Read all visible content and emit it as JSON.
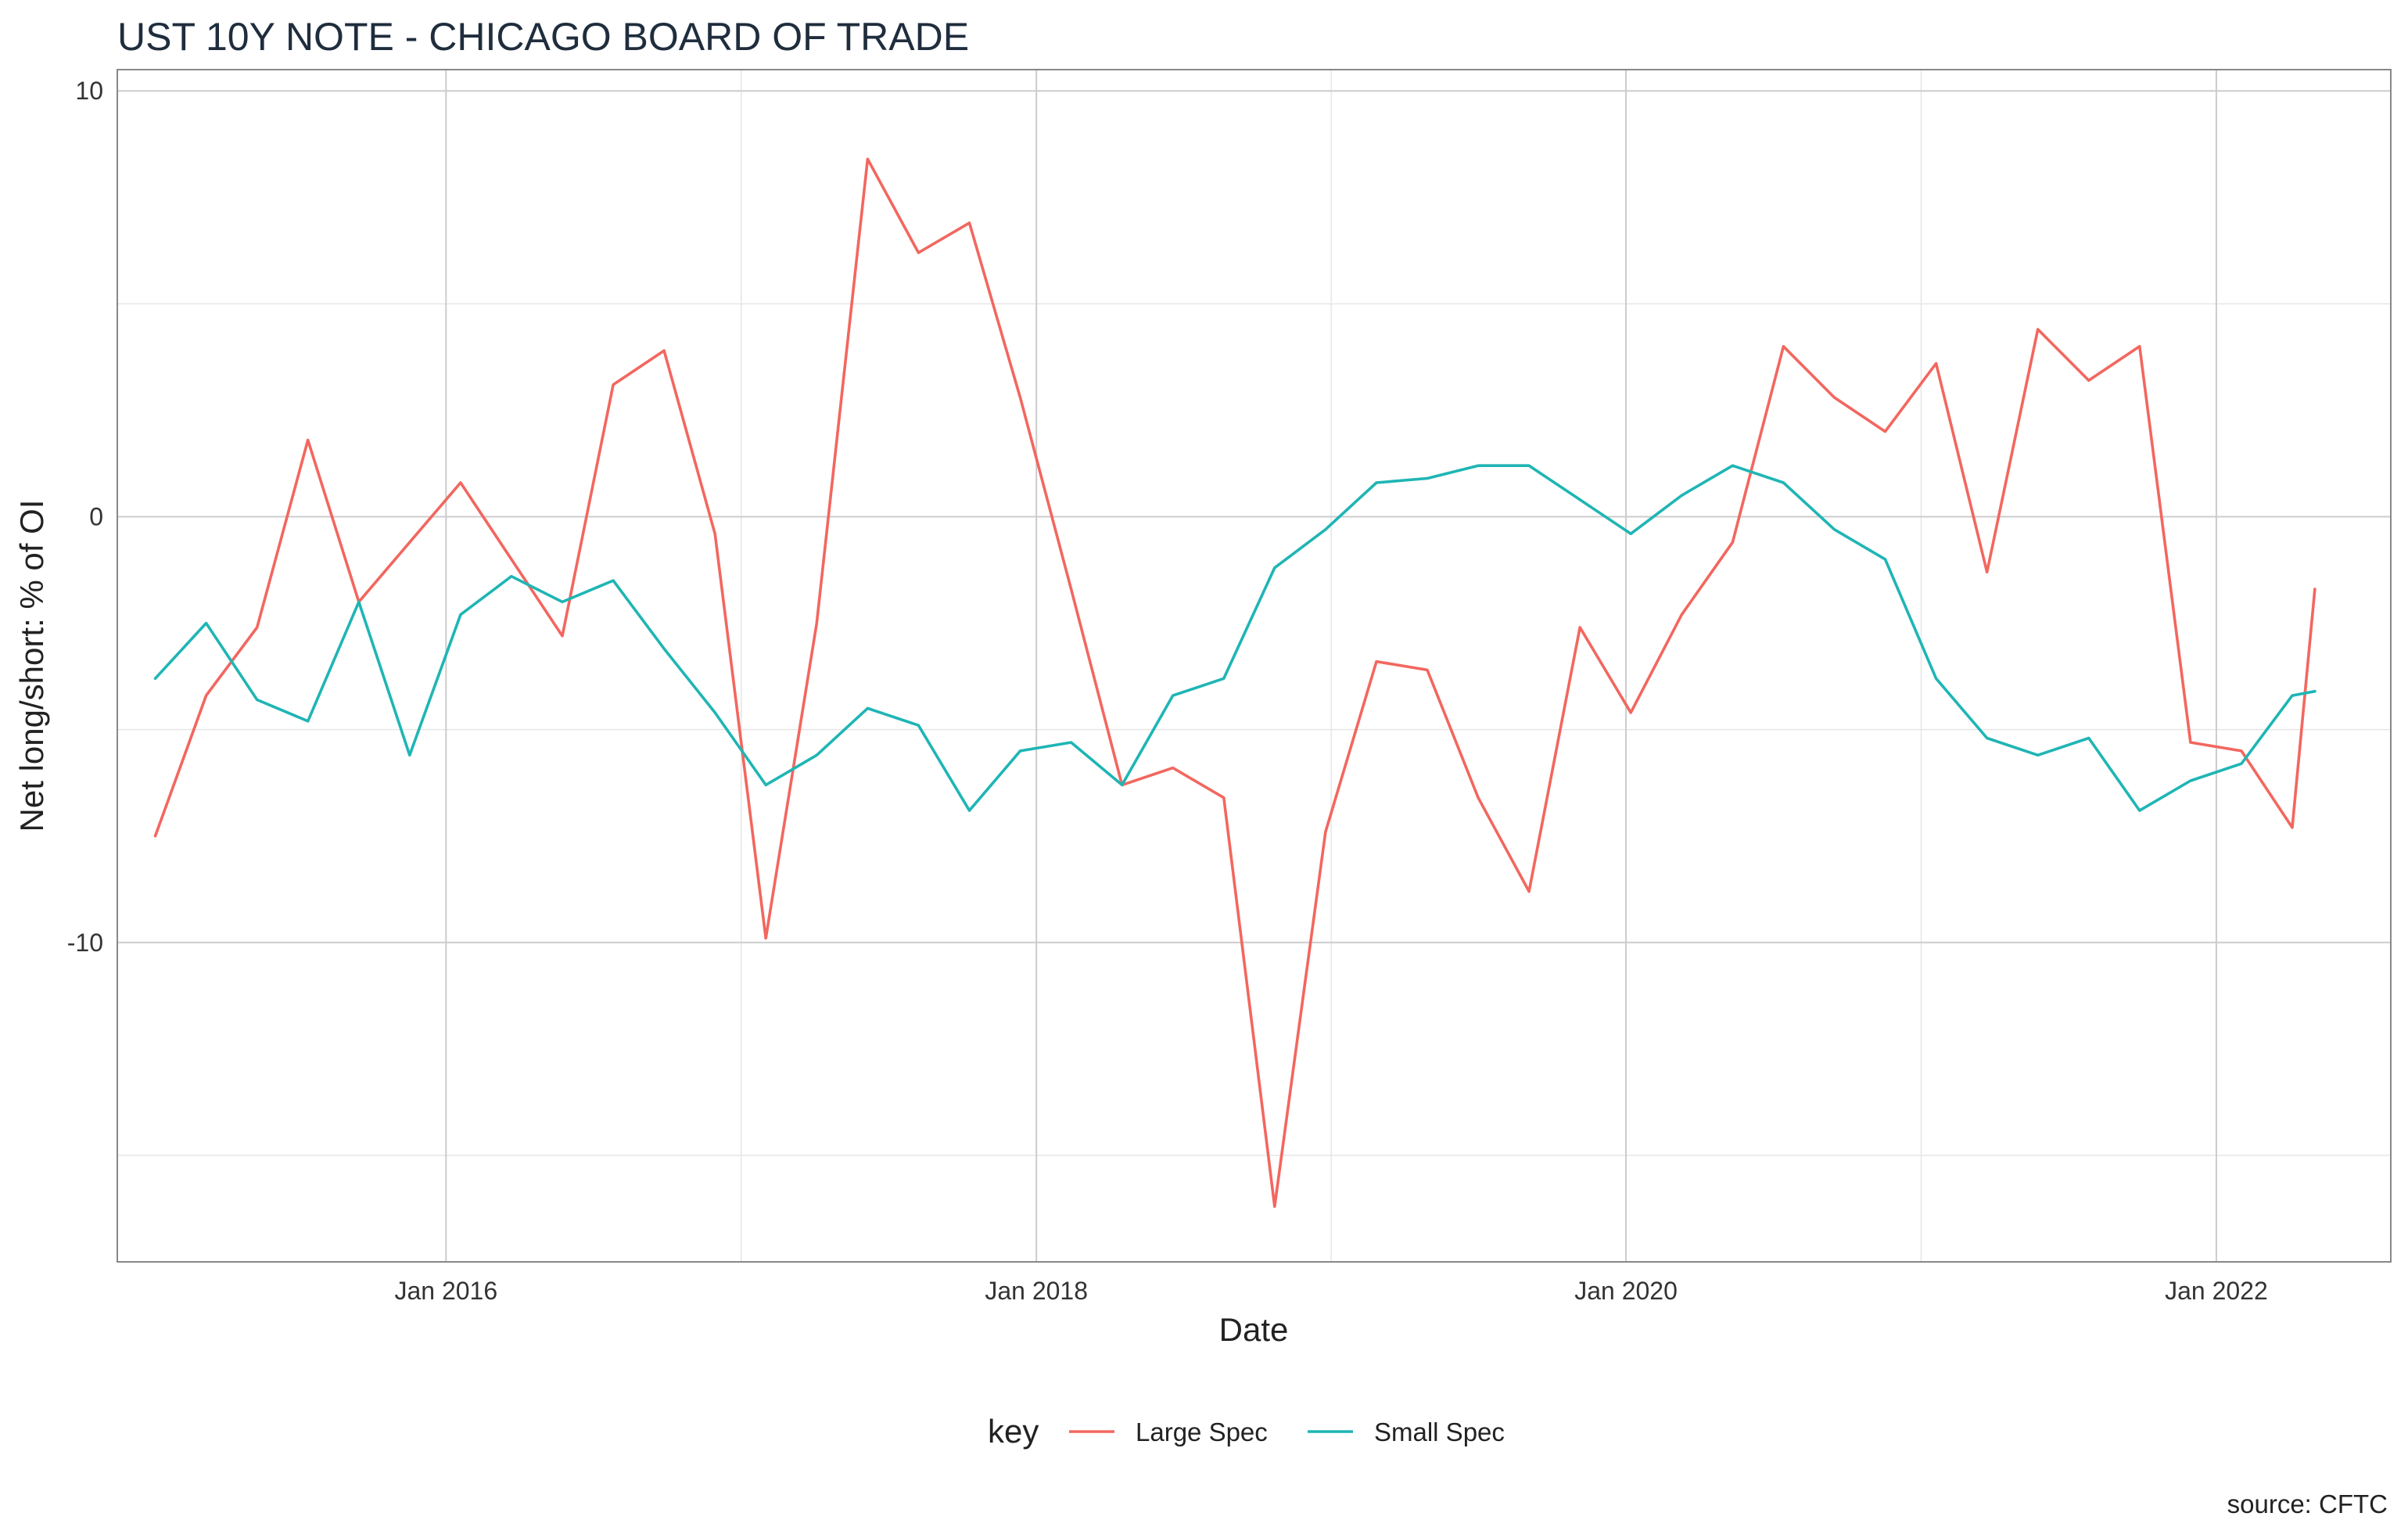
{
  "chart_data": {
    "type": "line",
    "title": "UST 10Y NOTE - CHICAGO BOARD OF TRADE",
    "xlabel": "Date",
    "ylabel": "Net long/short: % of OI",
    "caption": "source: CFTC",
    "legend": {
      "title": "key",
      "position": "bottom"
    },
    "grid": true,
    "xlim": [
      "2014-11-20",
      "2022-08-05"
    ],
    "ylim": [
      -17.5,
      10.5
    ],
    "x_ticks": [
      {
        "date": "2016-01-01",
        "label": "Jan 2016"
      },
      {
        "date": "2018-01-01",
        "label": "Jan 2018"
      },
      {
        "date": "2020-01-01",
        "label": "Jan 2020"
      },
      {
        "date": "2022-01-01",
        "label": "Jan 2022"
      }
    ],
    "y_ticks": [
      {
        "value": 10,
        "label": "10"
      },
      {
        "value": 0,
        "label": "0"
      },
      {
        "value": -10,
        "label": "-10"
      }
    ],
    "x": [
      "2015-01-06",
      "2015-03-10",
      "2015-05-12",
      "2015-07-14",
      "2015-09-15",
      "2015-11-17",
      "2016-01-19",
      "2016-03-22",
      "2016-05-24",
      "2016-07-26",
      "2016-09-27",
      "2016-11-29",
      "2017-01-31",
      "2017-04-04",
      "2017-06-06",
      "2017-08-08",
      "2017-10-10",
      "2017-12-12",
      "2018-02-13",
      "2018-04-17",
      "2018-06-19",
      "2018-08-21",
      "2018-10-23",
      "2018-12-25",
      "2019-02-26",
      "2019-04-30",
      "2019-07-02",
      "2019-09-03",
      "2019-11-05",
      "2020-01-07",
      "2020-03-10",
      "2020-05-12",
      "2020-07-14",
      "2020-09-15",
      "2020-11-17",
      "2021-01-19",
      "2021-03-23",
      "2021-05-25",
      "2021-07-27",
      "2021-09-28",
      "2021-11-30",
      "2022-02-01",
      "2022-04-05",
      "2022-05-03"
    ],
    "series": [
      {
        "name": "Large Spec",
        "color": "#F2675F",
        "values": [
          -7.5,
          -4.2,
          -2.6,
          1.8,
          -2.0,
          -0.6,
          0.8,
          -1.0,
          -2.8,
          3.1,
          3.9,
          -0.4,
          -9.9,
          -2.5,
          8.4,
          6.2,
          6.9,
          2.8,
          -1.7,
          -6.3,
          -5.9,
          -6.6,
          -16.2,
          -7.4,
          -3.4,
          -3.6,
          -6.6,
          -8.8,
          -2.6,
          -4.6,
          -2.3,
          -0.6,
          4.0,
          2.8,
          2.0,
          3.6,
          -1.3,
          4.4,
          3.2,
          4.0,
          -5.3,
          -5.5,
          -7.3,
          -1.7
        ]
      },
      {
        "name": "Small Spec",
        "color": "#1FB5B5",
        "values": [
          -3.8,
          -2.5,
          -4.3,
          -4.8,
          -2.0,
          -5.6,
          -2.3,
          -1.4,
          -2.0,
          -1.5,
          -3.1,
          -4.6,
          -6.3,
          -5.6,
          -4.5,
          -4.9,
          -6.9,
          -5.5,
          -5.3,
          -6.3,
          -4.2,
          -3.8,
          -1.2,
          -0.3,
          0.8,
          0.9,
          1.2,
          1.2,
          0.4,
          -0.4,
          0.5,
          1.2,
          0.8,
          -0.3,
          -1.0,
          -3.8,
          -5.2,
          -5.6,
          -5.2,
          -6.9,
          -6.2,
          -5.8,
          -4.2,
          -4.1
        ]
      }
    ]
  }
}
